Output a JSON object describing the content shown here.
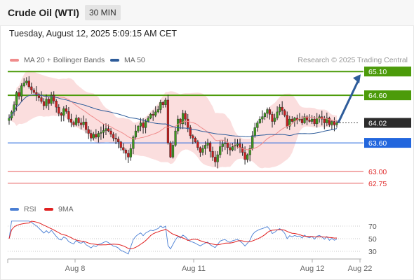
{
  "header": {
    "title": "Crude Oil (WTI)",
    "interval": "30 MIN",
    "timestamp": "Tuesday, August 12, 2025 5:09:15 AM CET"
  },
  "legend": {
    "items": [
      {
        "label": "MA 20 + Bollinger Bands",
        "color": "#f08c8c"
      },
      {
        "label": "MA 50",
        "color": "#2e5c9a"
      }
    ],
    "credit": "Research © 2025 Trading Central"
  },
  "rsi_legend": {
    "items": [
      {
        "label": "RSI",
        "color": "#4a7fd4"
      },
      {
        "label": "9MA",
        "color": "#e02020"
      }
    ]
  },
  "chart_data": [
    {
      "type": "candlestick",
      "title": "Crude Oil (WTI)",
      "interval": "30 MIN",
      "x_ticks": [
        "Aug 8",
        "Aug 11",
        "Aug 12",
        "Aug 22"
      ],
      "ylim": [
        62.6,
        65.25
      ],
      "current_price": 64.02,
      "levels": [
        {
          "value": 65.1,
          "label": "65.10",
          "kind": "resistance",
          "color": "#4c9b0a"
        },
        {
          "value": 64.6,
          "label": "64.60",
          "kind": "resistance",
          "color": "#4c9b0a"
        },
        {
          "value": 64.02,
          "label": "64.02",
          "kind": "last",
          "color": "#333333"
        },
        {
          "value": 63.6,
          "label": "63.60",
          "kind": "pivot",
          "color": "#2266dd"
        },
        {
          "value": 63.0,
          "label": "63.00",
          "kind": "support",
          "color": "#e03030"
        },
        {
          "value": 62.75,
          "label": "62.75",
          "kind": "support",
          "color": "#e03030"
        }
      ],
      "projection": {
        "from": 64.02,
        "to": 65.1,
        "color": "#2e5c9a"
      },
      "closes": [
        64.12,
        64.25,
        64.4,
        64.66,
        64.58,
        64.8,
        64.86,
        64.9,
        64.78,
        64.71,
        64.66,
        64.62,
        64.55,
        64.47,
        64.38,
        64.52,
        64.43,
        64.6,
        64.48,
        64.35,
        64.22,
        64.18,
        64.32,
        64.26,
        64.1,
        64.03,
        63.98,
        64.12,
        64.02,
        63.98,
        64.04,
        63.88,
        63.8,
        63.7,
        63.78,
        63.72,
        63.8,
        63.82,
        63.86,
        63.9,
        63.85,
        63.78,
        63.7,
        63.68,
        63.62,
        63.5,
        63.45,
        63.38,
        63.3,
        63.48,
        63.72,
        63.85,
        63.95,
        64.02,
        63.92,
        64.05,
        64.12,
        64.2,
        64.18,
        64.25,
        64.3,
        64.45,
        64.4,
        64.5,
        63.6,
        63.3,
        63.55,
        63.85,
        64.1,
        64.0,
        64.22,
        64.1,
        63.92,
        63.75,
        63.7,
        63.62,
        63.5,
        63.4,
        63.48,
        63.55,
        63.6,
        63.42,
        63.3,
        63.2,
        63.35,
        63.52,
        63.58,
        63.6,
        63.5,
        63.45,
        63.52,
        63.55,
        63.58,
        63.5,
        63.4,
        63.25,
        63.35,
        63.48,
        63.75,
        63.92,
        64.02,
        64.1,
        64.15,
        64.22,
        64.3,
        64.2,
        64.05,
        64.12,
        64.25,
        64.35,
        64.28,
        64.18,
        63.95,
        64.1,
        64.05,
        64.12,
        64.08,
        64.1,
        64.02,
        64.15,
        64.08,
        64.05,
        64.1,
        64.0,
        64.12,
        64.15,
        64.1,
        64.02,
        64.12,
        63.98,
        64.05,
        63.98,
        64.02
      ],
      "rsi": {
        "levels": [
          70,
          50,
          30
        ],
        "ylim": [
          20,
          80
        ]
      }
    }
  ]
}
